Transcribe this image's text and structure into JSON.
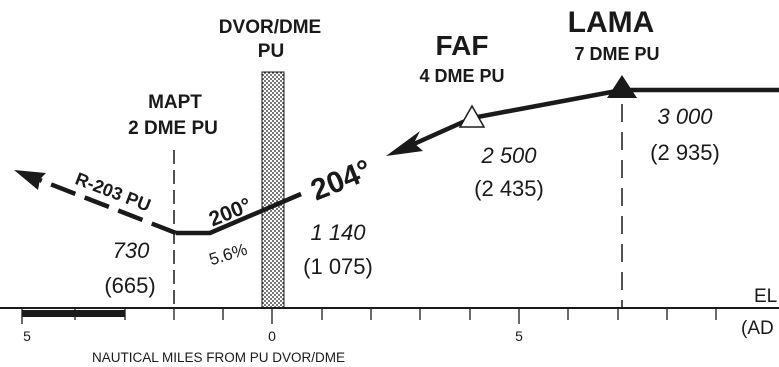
{
  "fixes": {
    "dvor": {
      "line1": "DVOR/DME",
      "line2": "PU"
    },
    "fas": {
      "name": "FAF",
      "dist": "4 DME PU"
    },
    "lama": {
      "name": "LAMA",
      "dist": "7 DME PU"
    },
    "mapt": {
      "name": "MAPT",
      "dist": "2 DME PU"
    }
  },
  "segments": {
    "missed_track": "R-203 PU",
    "level_track": "200°",
    "final_track": "204°",
    "gradient": "5.6%"
  },
  "altitudes": {
    "lama": {
      "alt": "3 000",
      "height": "(2 935)"
    },
    "faf": {
      "alt": "2 500",
      "height": "(2 435)"
    },
    "stepdown": {
      "alt": "1 140",
      "height": "(1 075)"
    },
    "mapt": {
      "alt": "730",
      "height": "(665)"
    }
  },
  "scale": {
    "tick_labels": [
      "5",
      "0",
      "5"
    ],
    "caption": "NAUTICAL MILES FROM PU DVOR/DME"
  },
  "elev": {
    "line1": "EL",
    "line2": "(AD"
  },
  "colors": {
    "ink": "#1a1a1a",
    "background": "#ffffff"
  },
  "icons": [
    "faf-open-triangle-icon",
    "lama-filled-triangle-icon",
    "dvor-stipple-band"
  ]
}
